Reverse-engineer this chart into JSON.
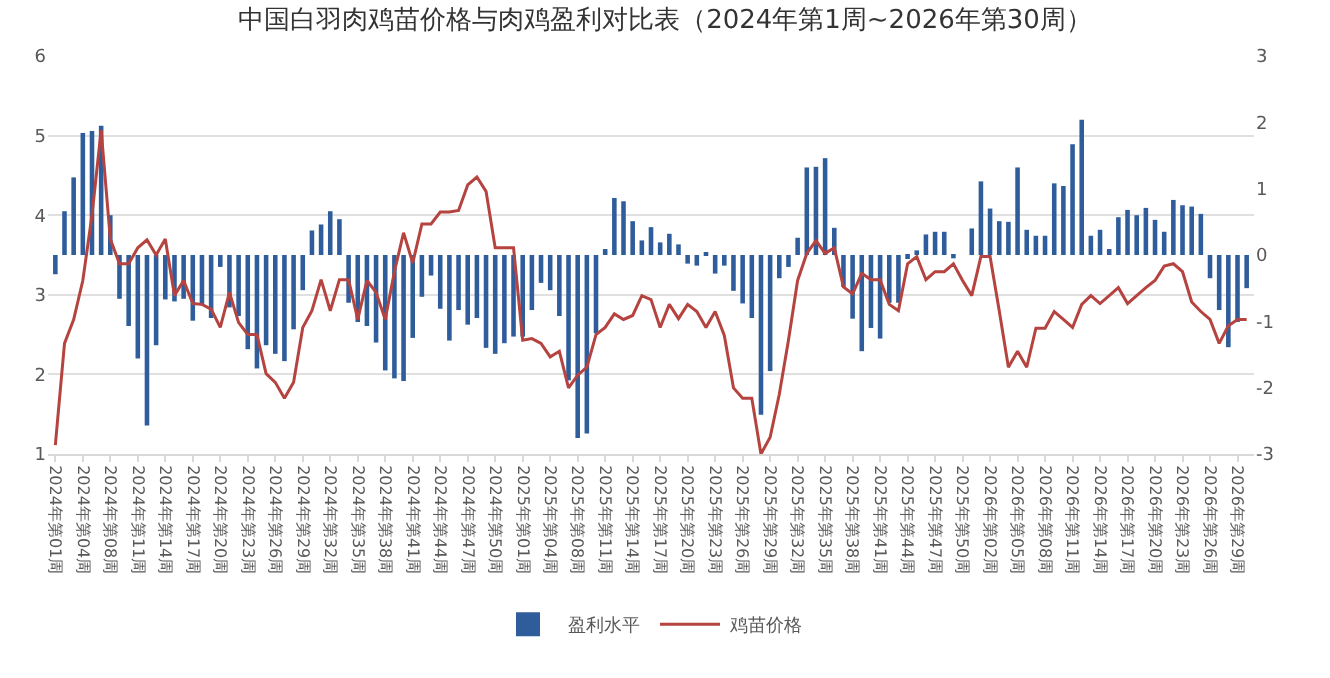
{
  "chart_data": {
    "type": "bar",
    "title": "中国白羽肉鸡苗价格与肉鸡盈利对比表（2024年第1周~2026年第30周）",
    "categories": [
      "2024年第01周",
      null,
      null,
      "2024年第04周",
      null,
      null,
      "2024年第08周",
      null,
      null,
      "2024年第11周",
      null,
      null,
      "2024年第14周",
      null,
      null,
      "2024年第17周",
      null,
      null,
      "2024年第20周",
      null,
      null,
      "2024年第23周",
      null,
      null,
      "2024年第26周",
      null,
      null,
      "2024年第29周",
      null,
      null,
      "2024年第32周",
      null,
      null,
      "2024年第35周",
      null,
      null,
      "2024年第38周",
      null,
      null,
      "2024年第41周",
      null,
      null,
      "2024年第44周",
      null,
      null,
      "2024年第47周",
      null,
      null,
      "2024年第50周",
      null,
      null,
      "2025年第01周",
      null,
      null,
      "2025年第04周",
      null,
      null,
      "2025年第08周",
      null,
      null,
      "2025年第11周",
      null,
      null,
      "2025年第14周",
      null,
      null,
      "2025年第17周",
      null,
      null,
      "2025年第20周",
      null,
      null,
      "2025年第23周",
      null,
      null,
      "2025年第26周",
      null,
      null,
      "2025年第29周",
      null,
      null,
      "2025年第32周",
      null,
      null,
      "2025年第35周",
      null,
      null,
      "2025年第38周",
      null,
      null,
      "2025年第41周",
      null,
      null,
      "2025年第44周",
      null,
      null,
      "2025年第47周",
      null,
      null,
      "2025年第50周",
      null,
      null,
      "2026年第02周",
      null,
      null,
      "2026年第05周",
      null,
      null,
      "2026年第08周",
      null,
      null,
      "2026年第11周",
      null,
      null,
      "2026年第14周",
      null,
      null,
      "2026年第17周",
      null,
      null,
      "2026年第20周",
      null,
      null,
      "2026年第23周",
      null,
      null,
      "2026年第26周",
      null,
      null,
      "2026年第29周",
      null
    ],
    "series": [
      {
        "name": "盈利水平",
        "axis": "y2",
        "color": "#2f5d9b",
        "values": [
          -0.29,
          0.66,
          1.17,
          1.84,
          1.87,
          1.95,
          0.6,
          -0.66,
          -1.07,
          -1.56,
          -2.57,
          -1.36,
          -0.67,
          -0.7,
          -0.66,
          -0.99,
          -0.76,
          -0.95,
          -0.18,
          -0.79,
          -0.92,
          -1.42,
          -1.71,
          -1.36,
          -1.49,
          -1.6,
          -1.12,
          -0.53,
          0.37,
          0.46,
          0.66,
          0.54,
          -0.72,
          -1.01,
          -1.07,
          -1.32,
          -1.74,
          -1.86,
          -1.9,
          -1.25,
          -0.63,
          -0.31,
          -0.81,
          -1.29,
          -0.83,
          -1.05,
          -0.95,
          -1.4,
          -1.49,
          -1.33,
          -1.23,
          -1.23,
          -0.83,
          -0.42,
          -0.53,
          -0.92,
          -1.89,
          -2.76,
          -2.69,
          -1.18,
          0.09,
          0.86,
          0.81,
          0.51,
          0.22,
          0.42,
          0.19,
          0.32,
          0.16,
          -0.13,
          -0.16,
          0.04,
          -0.28,
          -0.16,
          -0.54,
          -0.73,
          -0.95,
          -2.41,
          -1.75,
          -0.35,
          -0.18,
          0.26,
          1.32,
          1.33,
          1.46,
          0.41,
          -0.48,
          -0.96,
          -1.45,
          -1.1,
          -1.26,
          -0.72,
          -0.72,
          -0.06,
          0.07,
          0.31,
          0.35,
          0.35,
          -0.05,
          0,
          0.4,
          1.11,
          0.7,
          0.51,
          0.5,
          1.32,
          0.38,
          0.29,
          0.29,
          1.08,
          1.04,
          1.67,
          2.04,
          0.29,
          0.38,
          0.09,
          0.57,
          0.68,
          0.6,
          0.71,
          0.53,
          0.35,
          0.83,
          0.75,
          0.73,
          0.62,
          -0.35,
          -0.83,
          -1.39,
          -1.01,
          -0.5
        ]
      },
      {
        "name": "鸡苗价格",
        "type": "line",
        "color": "#b5433f",
        "values": [
          1.11,
          2.39,
          2.69,
          3.18,
          4.0,
          5.07,
          3.7,
          3.39,
          3.39,
          3.59,
          3.69,
          3.5,
          3.7,
          2.99,
          3.18,
          2.89,
          2.88,
          2.82,
          2.59,
          3.03,
          2.65,
          2.5,
          2.5,
          2.01,
          1.9,
          1.7,
          1.9,
          2.59,
          2.8,
          3.19,
          2.8,
          3.19,
          3.19,
          2.69,
          3.18,
          3.03,
          2.69,
          3.29,
          3.78,
          3.4,
          3.89,
          3.89,
          4.04,
          4.04,
          4.06,
          4.38,
          4.48,
          4.3,
          3.59,
          3.59,
          3.59,
          2.43,
          2.45,
          2.39,
          2.22,
          2.29,
          1.83,
          1.99,
          2.09,
          2.5,
          2.59,
          2.76,
          2.69,
          2.74,
          2.99,
          2.94,
          2.59,
          2.88,
          2.7,
          2.88,
          2.79,
          2.59,
          2.79,
          2.49,
          1.83,
          1.7,
          1.7,
          1.0,
          1.21,
          1.75,
          2.43,
          3.18,
          3.52,
          3.68,
          3.52,
          3.59,
          3.1,
          3.01,
          3.27,
          3.19,
          3.19,
          2.88,
          2.8,
          3.39,
          3.48,
          3.19,
          3.29,
          3.29,
          3.39,
          3.18,
          2.99,
          3.48,
          3.48,
          2.8,
          2.09,
          2.29,
          2.09,
          2.58,
          2.58,
          2.79,
          2.69,
          2.59,
          2.88,
          2.99,
          2.89,
          2.99,
          3.09,
          2.89,
          2.99,
          3.09,
          3.18,
          3.36,
          3.39,
          3.29,
          2.91,
          2.79,
          2.69,
          2.39,
          2.61,
          2.69,
          2.69
        ]
      }
    ],
    "ylim": [
      1,
      6
    ],
    "yticks": [
      1,
      2,
      3,
      4,
      5,
      6
    ],
    "y2lim": [
      -3,
      3
    ],
    "y2ticks": [
      -3,
      -2,
      -1,
      0,
      1,
      2,
      3
    ],
    "grid": "y",
    "legend": "bottom",
    "marker": "none",
    "line_style": "solid"
  }
}
